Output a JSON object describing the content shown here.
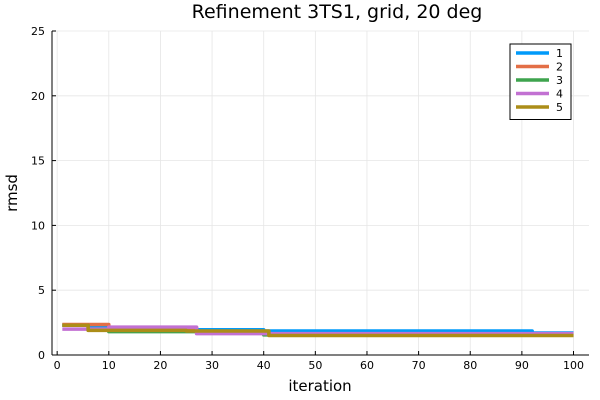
{
  "chart_data": {
    "type": "line",
    "title": "Refinement 3TS1, grid, 20 deg",
    "xlabel": "iteration",
    "ylabel": "rmsd",
    "xlim": [
      -1,
      103
    ],
    "ylim": [
      0,
      25
    ],
    "xticks": [
      0,
      10,
      20,
      30,
      40,
      50,
      60,
      70,
      80,
      90,
      100
    ],
    "yticks": [
      0,
      5,
      10,
      15,
      20,
      25
    ],
    "grid": true,
    "legend_position": "top-right",
    "series": [
      {
        "name": "1",
        "color": "#009AFA",
        "points": [
          [
            1,
            2.3
          ],
          [
            6,
            2.3
          ],
          [
            6,
            2.1
          ],
          [
            10,
            2.1
          ],
          [
            10,
            1.95
          ],
          [
            40,
            1.95
          ],
          [
            40,
            1.85
          ],
          [
            92,
            1.85
          ],
          [
            92,
            1.7
          ],
          [
            100,
            1.7
          ]
        ]
      },
      {
        "name": "2",
        "color": "#E36F47",
        "points": [
          [
            1,
            2.35
          ],
          [
            10,
            2.35
          ],
          [
            10,
            2.1
          ],
          [
            27,
            2.1
          ],
          [
            27,
            1.8
          ],
          [
            40,
            1.8
          ],
          [
            40,
            1.6
          ],
          [
            100,
            1.6
          ]
        ]
      },
      {
        "name": "3",
        "color": "#3EA44E",
        "points": [
          [
            1,
            2.3
          ],
          [
            6,
            2.3
          ],
          [
            6,
            1.95
          ],
          [
            10,
            1.95
          ],
          [
            10,
            1.8
          ],
          [
            40,
            1.8
          ],
          [
            40,
            1.55
          ],
          [
            100,
            1.55
          ]
        ]
      },
      {
        "name": "4",
        "color": "#C271D2",
        "points": [
          [
            1,
            2.0
          ],
          [
            10,
            2.0
          ],
          [
            10,
            2.15
          ],
          [
            27,
            2.15
          ],
          [
            27,
            1.65
          ],
          [
            100,
            1.65
          ]
        ]
      },
      {
        "name": "5",
        "color": "#AC8D18",
        "points": [
          [
            1,
            2.3
          ],
          [
            6,
            2.3
          ],
          [
            6,
            1.9
          ],
          [
            25,
            1.9
          ],
          [
            25,
            1.85
          ],
          [
            41,
            1.85
          ],
          [
            41,
            1.5
          ],
          [
            100,
            1.5
          ]
        ]
      }
    ]
  }
}
